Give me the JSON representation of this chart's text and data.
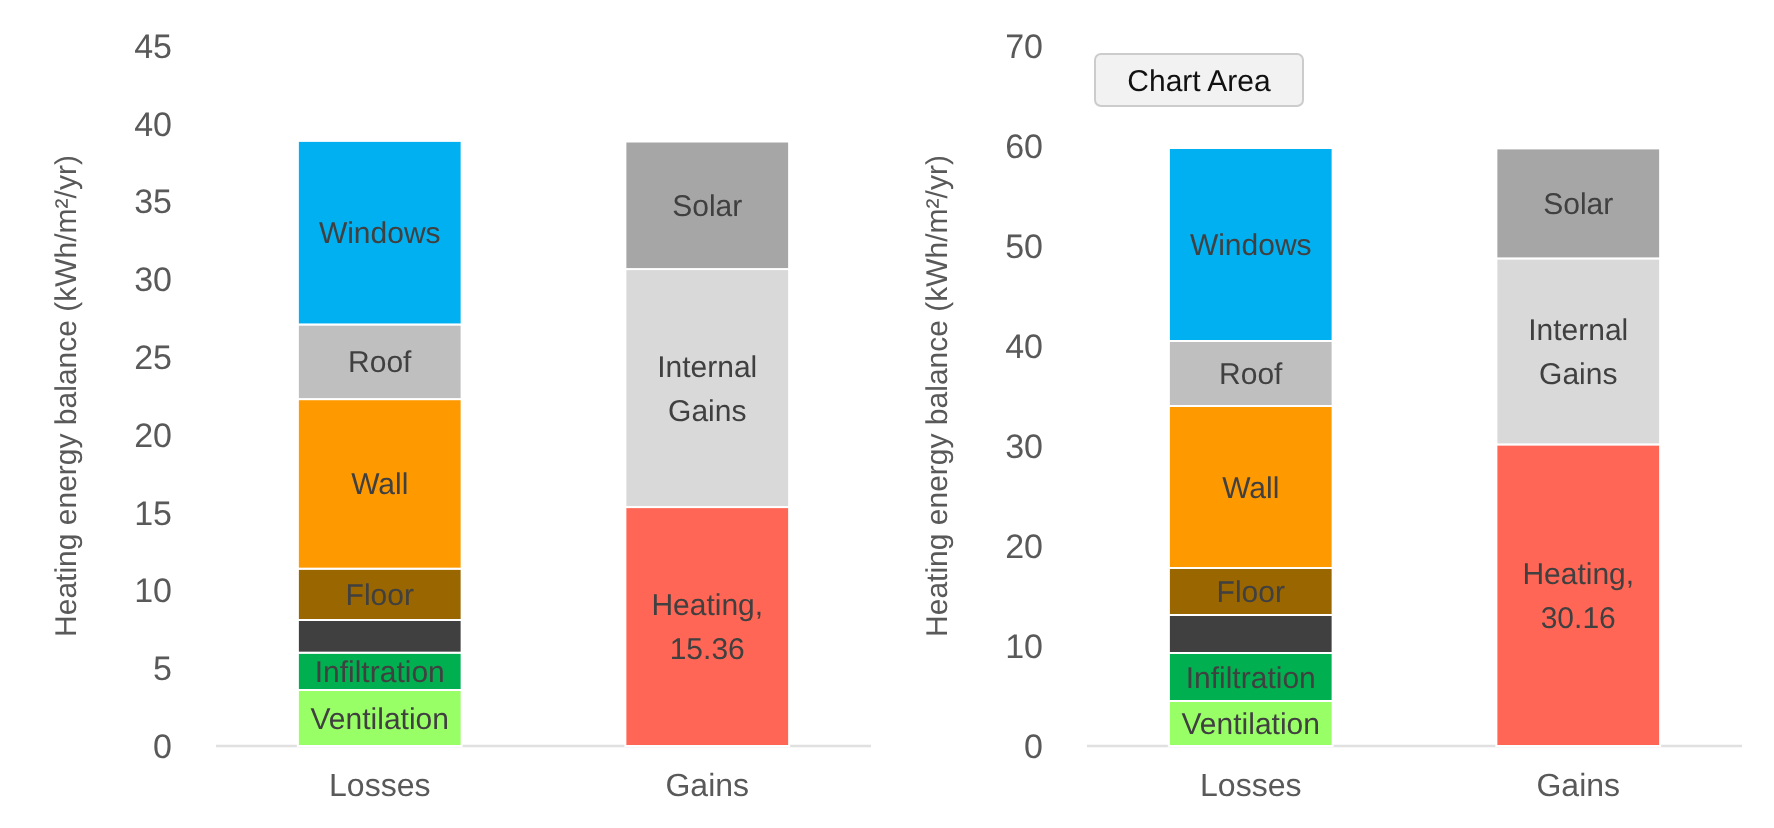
{
  "chart_data": [
    {
      "type": "bar",
      "stacked": true,
      "ylabel": "Heating energy balance (kWh/m²/yr)",
      "categories": [
        "Losses",
        "Gains"
      ],
      "ylim": [
        0,
        45
      ],
      "yticks": [
        0,
        5,
        10,
        15,
        20,
        25,
        30,
        35,
        40,
        45
      ],
      "series": [
        {
          "name": "Ventilation",
          "color": "#99ff66",
          "values": [
            3.6,
            null
          ]
        },
        {
          "name": "Infiltration",
          "color": "#00b050",
          "values": [
            2.4,
            null
          ]
        },
        {
          "color": "#404040",
          "values": [
            2.1,
            null
          ]
        },
        {
          "name": "Floor",
          "color": "#996600",
          "values": [
            3.3,
            null
          ]
        },
        {
          "name": "Wall",
          "color": "#ff9900",
          "values": [
            10.9,
            null
          ]
        },
        {
          "name": "Roof",
          "color": "#bfbfbf",
          "values": [
            4.8,
            null
          ]
        },
        {
          "name": "Windows",
          "color": "#00b0f0",
          "values": [
            11.8,
            null
          ]
        },
        {
          "name": "Heating,",
          "color": "#ff6655",
          "values": [
            null,
            15.36
          ],
          "value_labels": [
            null,
            "15.36"
          ]
        },
        {
          "name": "Internal Gains",
          "color": "#d9d9d9",
          "values": [
            null,
            15.3
          ]
        },
        {
          "name": "Solar",
          "color": "#a6a6a6",
          "values": [
            null,
            8.2
          ]
        }
      ]
    },
    {
      "type": "bar",
      "stacked": true,
      "ylabel": "Heating energy balance (kWh/m²/yr)",
      "categories": [
        "Losses",
        "Gains"
      ],
      "ylim": [
        0,
        70
      ],
      "yticks": [
        0,
        10,
        20,
        30,
        40,
        50,
        60,
        70
      ],
      "annotations": [
        "Chart Area"
      ],
      "series": [
        {
          "name": "Ventilation",
          "color": "#99ff66",
          "values": [
            4.5,
            null
          ]
        },
        {
          "name": "Infiltration",
          "color": "#00b050",
          "values": [
            4.8,
            null
          ]
        },
        {
          "color": "#404040",
          "values": [
            3.8,
            null
          ]
        },
        {
          "name": "Floor",
          "color": "#996600",
          "values": [
            4.7,
            null
          ]
        },
        {
          "name": "Wall",
          "color": "#ff9900",
          "values": [
            16.2,
            null
          ]
        },
        {
          "name": "Roof",
          "color": "#bfbfbf",
          "values": [
            6.5,
            null
          ]
        },
        {
          "name": "Windows",
          "color": "#00b0f0",
          "values": [
            19.3,
            null
          ]
        },
        {
          "name": "Heating,",
          "color": "#ff6655",
          "values": [
            null,
            30.16
          ],
          "value_labels": [
            null,
            "30.16"
          ]
        },
        {
          "name": "Internal Gains",
          "color": "#d9d9d9",
          "values": [
            null,
            18.6
          ]
        },
        {
          "name": "Solar",
          "color": "#a6a6a6",
          "values": [
            null,
            11
          ]
        }
      ]
    }
  ]
}
